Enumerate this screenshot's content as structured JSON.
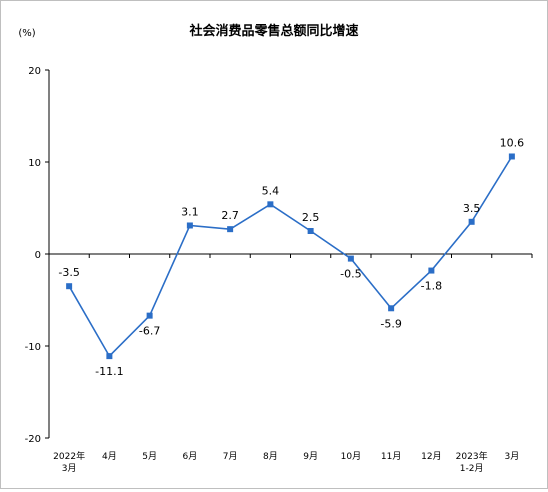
{
  "chart_data": {
    "type": "line",
    "title": "社会消费品零售总额同比增速",
    "ylabel": "(%)",
    "xlabel": "",
    "ylim": [
      -20,
      20
    ],
    "yticks": [
      20,
      10,
      0,
      -10,
      -20
    ],
    "grid": false,
    "legend": "none",
    "categories": [
      [
        "2022年",
        "3月"
      ],
      [
        "4月"
      ],
      [
        "5月"
      ],
      [
        "6月"
      ],
      [
        "7月"
      ],
      [
        "8月"
      ],
      [
        "9月"
      ],
      [
        "10月"
      ],
      [
        "11月"
      ],
      [
        "12月"
      ],
      [
        "2023年",
        "1-2月"
      ],
      [
        "3月"
      ]
    ],
    "series": [
      {
        "color": "#2b6ec7",
        "values": [
          -3.5,
          -11.1,
          -6.7,
          3.1,
          2.7,
          5.4,
          2.5,
          -0.5,
          -5.9,
          -1.8,
          3.5,
          10.6
        ],
        "labels": [
          "-3.5",
          "-11.1",
          "-6.7",
          "3.1",
          "2.7",
          "5.4",
          "2.5",
          "-0.5",
          "-5.9",
          "-1.8",
          "3.5",
          "10.6"
        ],
        "label_positions": [
          "above",
          "below",
          "below",
          "above",
          "above",
          "above",
          "above",
          "below",
          "below",
          "below",
          "above",
          "above"
        ]
      }
    ]
  }
}
